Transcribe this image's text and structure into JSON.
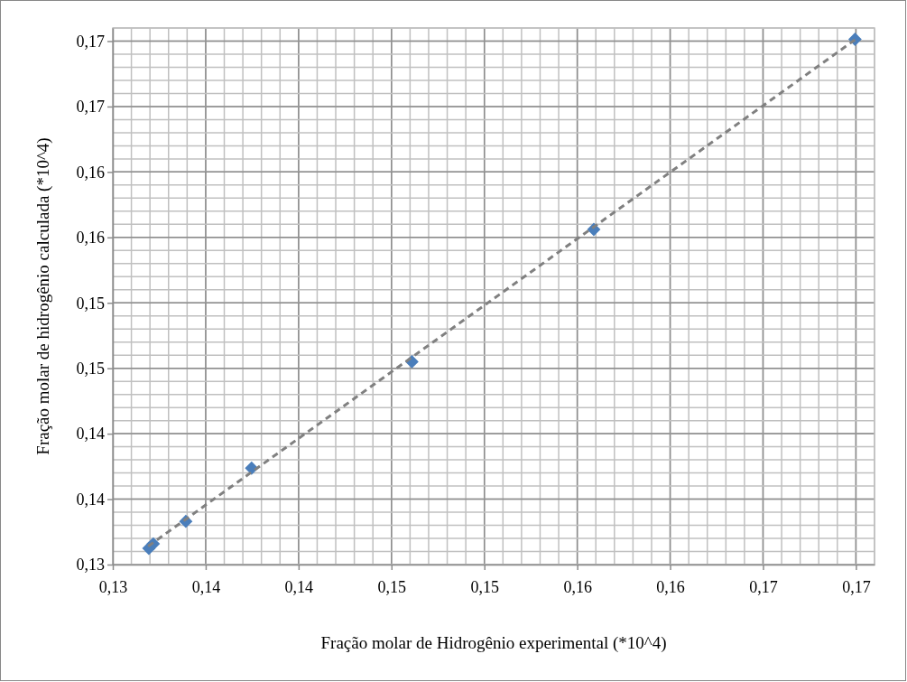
{
  "chart_data": {
    "type": "scatter",
    "xlabel": "Fração molar de Hidrogênio experimental (*10^4)",
    "ylabel": "Fração molar de hidrogênio calculada (*10^4)",
    "xlim": [
      0.13,
      0.171
    ],
    "ylim": [
      0.13,
      0.171
    ],
    "xticks": [
      {
        "value": 0.13,
        "label": "0,13"
      },
      {
        "value": 0.135,
        "label": "0,14"
      },
      {
        "value": 0.14,
        "label": "0,14"
      },
      {
        "value": 0.145,
        "label": "0,15"
      },
      {
        "value": 0.15,
        "label": "0,15"
      },
      {
        "value": 0.155,
        "label": "0,16"
      },
      {
        "value": 0.16,
        "label": "0,16"
      },
      {
        "value": 0.165,
        "label": "0,17"
      },
      {
        "value": 0.17,
        "label": "0,17"
      }
    ],
    "yticks": [
      {
        "value": 0.13,
        "label": "0,13"
      },
      {
        "value": 0.135,
        "label": "0,14"
      },
      {
        "value": 0.14,
        "label": "0,14"
      },
      {
        "value": 0.145,
        "label": "0,15"
      },
      {
        "value": 0.15,
        "label": "0,15"
      },
      {
        "value": 0.155,
        "label": "0,16"
      },
      {
        "value": 0.16,
        "label": "0,16"
      },
      {
        "value": 0.165,
        "label": "0,17"
      },
      {
        "value": 0.17,
        "label": "0,17"
      }
    ],
    "grid": true,
    "series": [
      {
        "type": "line",
        "color": "#808080",
        "line_style": "dashed",
        "marker": "none",
        "x": [
          0.1319,
          0.16995
        ],
        "values": [
          0.1314,
          0.1701
        ]
      },
      {
        "color": "#4a7ebb",
        "marker": "diamond",
        "x": [
          0.13194,
          0.13218,
          0.13393,
          0.13747,
          0.1461,
          0.15589,
          0.16995
        ],
        "values": [
          0.13124,
          0.13158,
          0.1333,
          0.13737,
          0.1455,
          0.15561,
          0.17014
        ]
      }
    ]
  }
}
